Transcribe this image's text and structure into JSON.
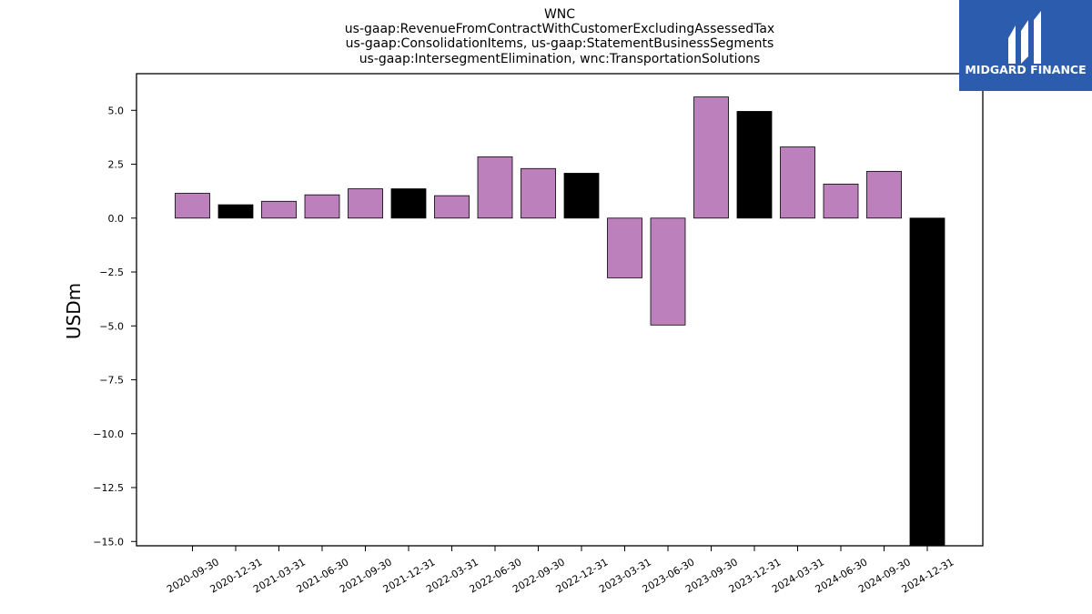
{
  "chart_data": {
    "type": "bar",
    "title_lines": [
      "WNC",
      "us-gaap:RevenueFromContractWithCustomerExcludingAssessedTax",
      "us-gaap:ConsolidationItems, us-gaap:StatementBusinessSegments",
      "us-gaap:IntersegmentElimination, wnc:TransportationSolutions"
    ],
    "xlabel": "",
    "ylabel": "USDm",
    "categories": [
      "2020-09-30",
      "2020-12-31",
      "2021-03-31",
      "2021-06-30",
      "2021-09-30",
      "2021-12-31",
      "2022-03-31",
      "2022-06-30",
      "2022-09-30",
      "2022-12-31",
      "2023-03-31",
      "2023-06-30",
      "2023-09-30",
      "2023-12-31",
      "2024-03-31",
      "2024-06-30",
      "2024-09-30",
      "2024-12-31"
    ],
    "values": [
      1.15,
      0.62,
      0.78,
      1.08,
      1.36,
      1.36,
      1.04,
      2.84,
      2.3,
      2.08,
      -2.77,
      -4.96,
      5.62,
      4.95,
      3.3,
      1.58,
      2.17,
      -15.2
    ],
    "bar_colors": [
      "#bc80bd",
      "#000000",
      "#bc80bd",
      "#bc80bd",
      "#bc80bd",
      "#000000",
      "#bc80bd",
      "#bc80bd",
      "#bc80bd",
      "#000000",
      "#bc80bd",
      "#bc80bd",
      "#bc80bd",
      "#000000",
      "#bc80bd",
      "#bc80bd",
      "#bc80bd",
      "#000000"
    ],
    "yticks": [
      5.0,
      2.5,
      0.0,
      -2.5,
      -5.0,
      -7.5,
      -10.0,
      -12.5,
      -15.0
    ],
    "ytick_labels": [
      "5.0",
      "2.5",
      "0.0",
      "−2.5",
      "−5.0",
      "−7.5",
      "−10.0",
      "−12.5",
      "−15.0"
    ],
    "ylim": [
      -15.2,
      6.7
    ],
    "grid": false,
    "legend": "none"
  },
  "logo": {
    "text": "MIDGARD FINANCE",
    "background": "#2b5cad"
  }
}
